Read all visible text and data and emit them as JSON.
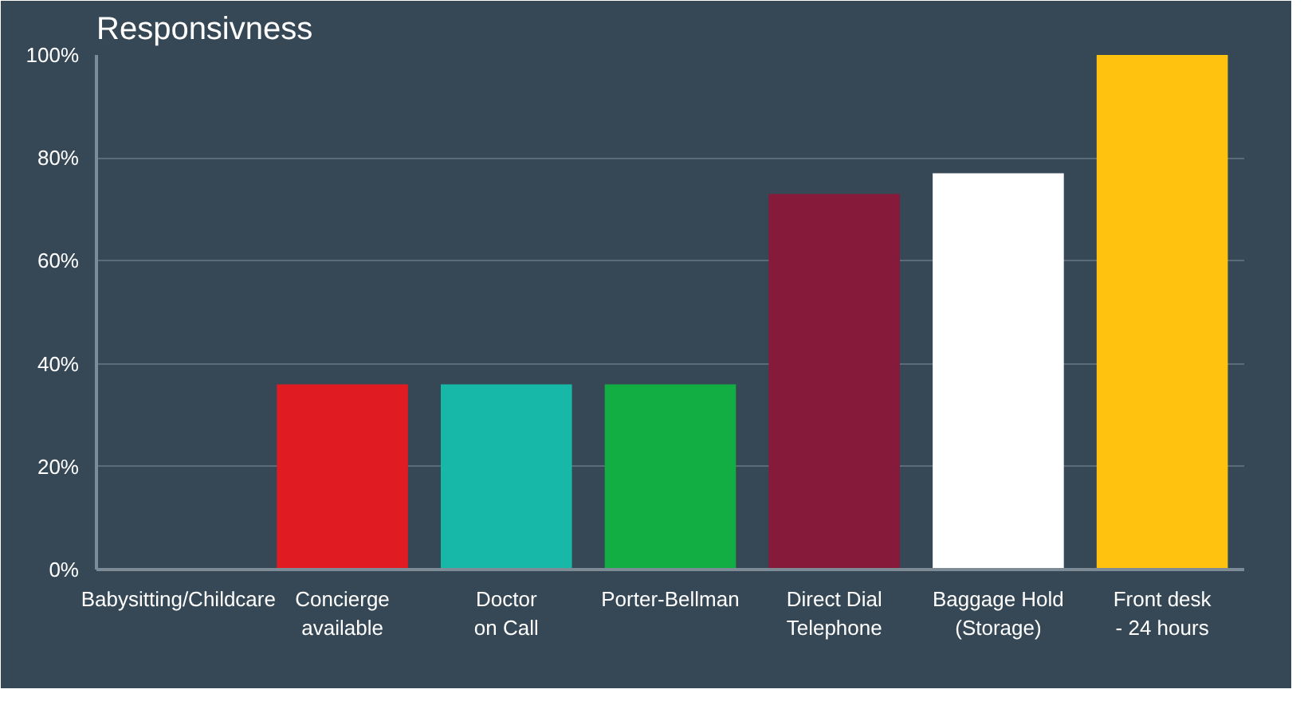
{
  "chart_data": {
    "type": "bar",
    "title": "Responsivness",
    "categories": [
      "Babysitting/Childcare",
      "Concierge available",
      "Doctor on Call",
      "Porter-Bellman",
      "Direct Dial Telephone",
      "Baggage Hold (Storage)",
      "Front desk - 24 hours"
    ],
    "values": [
      0,
      36,
      36,
      36,
      73,
      77,
      100
    ],
    "colors": [
      "#3a4a5a",
      "#e01b22",
      "#17b8a8",
      "#12ad43",
      "#861a3a",
      "#ffffff",
      "#ffc20e"
    ],
    "ylim": [
      0,
      100
    ],
    "yticks": [
      {
        "value": 0,
        "label": "0%"
      },
      {
        "value": 20,
        "label": "20%"
      },
      {
        "value": 40,
        "label": "40%"
      },
      {
        "value": 60,
        "label": "60%"
      },
      {
        "value": 80,
        "label": "80%"
      },
      {
        "value": 100,
        "label": "100%"
      }
    ],
    "grid": "y"
  }
}
